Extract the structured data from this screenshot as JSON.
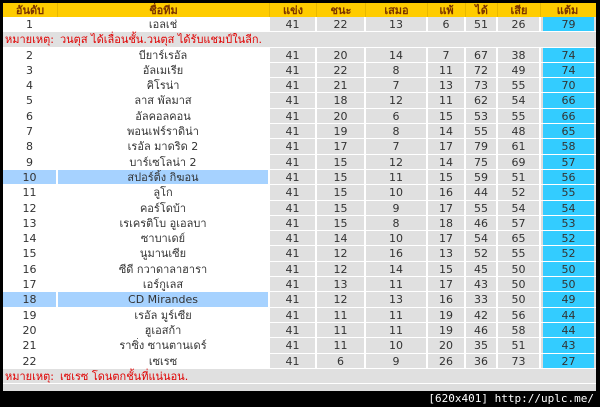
{
  "headers": [
    "อันดับ",
    "ชื่อทีม",
    "แข่ง",
    "ชนะ",
    "เสมอ",
    "แพ้",
    "ได้",
    "เสีย",
    "แต้ม"
  ],
  "rows": [
    [
      "1",
      "เอลเช่",
      "41",
      "22",
      "13",
      "6",
      "51",
      "26",
      "79"
    ],
    [
      "2",
      "บียาร์เรอัล",
      "41",
      "20",
      "14",
      "7",
      "67",
      "38",
      "74"
    ],
    [
      "3",
      "อัลเมเรีย",
      "41",
      "22",
      "8",
      "11",
      "72",
      "49",
      "74"
    ],
    [
      "4",
      "คิโรน่า",
      "41",
      "21",
      "7",
      "13",
      "73",
      "55",
      "70"
    ],
    [
      "5",
      "ลาส พัลมาส",
      "41",
      "18",
      "12",
      "11",
      "62",
      "54",
      "66"
    ],
    [
      "6",
      "อัลคอลคอน",
      "41",
      "20",
      "6",
      "15",
      "53",
      "55",
      "66"
    ],
    [
      "7",
      "พอนเฟร์ราดิน่า",
      "41",
      "19",
      "8",
      "14",
      "55",
      "48",
      "65"
    ],
    [
      "8",
      "เรอัล มาดริด 2",
      "41",
      "17",
      "7",
      "17",
      "79",
      "61",
      "58"
    ],
    [
      "9",
      "บาร์เซโลน่า 2",
      "41",
      "15",
      "12",
      "14",
      "75",
      "69",
      "57"
    ],
    [
      "10",
      "สปอร์ติ้ง กิฆอน",
      "41",
      "15",
      "11",
      "15",
      "59",
      "51",
      "56"
    ],
    [
      "11",
      "ลูโก",
      "41",
      "15",
      "10",
      "16",
      "44",
      "52",
      "55"
    ],
    [
      "12",
      "คอร์โดบ้า",
      "41",
      "15",
      "9",
      "17",
      "55",
      "54",
      "54"
    ],
    [
      "13",
      "เรเครติโบ อูเอลบา",
      "41",
      "15",
      "8",
      "18",
      "46",
      "57",
      "53"
    ],
    [
      "14",
      "ซาบาเดย์",
      "41",
      "14",
      "10",
      "17",
      "54",
      "65",
      "52"
    ],
    [
      "15",
      "นูมานเซีย",
      "41",
      "12",
      "16",
      "13",
      "52",
      "55",
      "52"
    ],
    [
      "16",
      "ซีดี กวาดาลาฮารา",
      "41",
      "12",
      "14",
      "15",
      "45",
      "50",
      "50"
    ],
    [
      "17",
      "เอร์กูเลส",
      "41",
      "13",
      "11",
      "17",
      "43",
      "50",
      "50"
    ],
    [
      "18",
      "CD Mirandes",
      "41",
      "12",
      "13",
      "16",
      "33",
      "50",
      "49"
    ],
    [
      "19",
      "เรอัล มูร์เซีย",
      "41",
      "11",
      "11",
      "19",
      "42",
      "56",
      "44"
    ],
    [
      "20",
      "ฮูเอสก้า",
      "41",
      "11",
      "11",
      "19",
      "46",
      "58",
      "44"
    ],
    [
      "21",
      "ราซิ่ง ซานตานเดร์",
      "41",
      "11",
      "10",
      "20",
      "35",
      "51",
      "43"
    ],
    [
      "22",
      "เซเรซ",
      "41",
      "6",
      "9",
      "26",
      "36",
      "73",
      "27"
    ]
  ],
  "highlighted_ranks": [
    "10",
    "18"
  ],
  "notes": {
    "label": "หมายเหตุ:",
    "after_1": "วนตุส ได้เลื่อนชั้น.วนตุส ได้รับแชมป์ในลีก.",
    "after_22": "เซเรซ โดนตกชั้นที่แน่นอน."
  },
  "footer": "[620x401] http://uplc.me/",
  "colors": {
    "header": "#ffcc00",
    "points": "#33ccff",
    "highlight": "#a6d2ff",
    "note_text": "#e00000"
  }
}
